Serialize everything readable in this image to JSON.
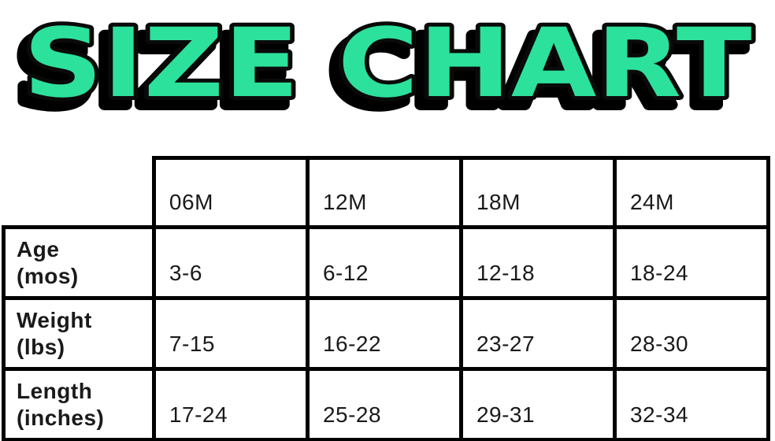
{
  "title": {
    "text": "SIZE CHART"
  },
  "colors": {
    "title_fill": "#2ce19c",
    "title_outline": "#000000",
    "table_border": "#000000",
    "text": "#1a1a1a",
    "background": "#ffffff"
  },
  "table": {
    "columns": [
      "06M",
      "12M",
      "18M",
      "24M"
    ],
    "rows": [
      {
        "label_line1": "Age",
        "label_line2": "(mos)",
        "values": [
          "3-6",
          "6-12",
          "12-18",
          "18-24"
        ]
      },
      {
        "label_line1": "Weight",
        "label_line2": "(lbs)",
        "values": [
          "7-15",
          "16-22",
          "23-27",
          "28-30"
        ]
      },
      {
        "label_line1": "Length",
        "label_line2": "(inches)",
        "values": [
          "17-24",
          "25-28",
          "29-31",
          "32-34"
        ]
      }
    ]
  },
  "chart_data": {
    "type": "table",
    "title": "SIZE CHART",
    "columns": [
      "",
      "06M",
      "12M",
      "18M",
      "24M"
    ],
    "rows": [
      [
        "Age (mos)",
        "3-6",
        "6-12",
        "12-18",
        "18-24"
      ],
      [
        "Weight (lbs)",
        "7-15",
        "16-22",
        "23-27",
        "28-30"
      ],
      [
        "Length (inches)",
        "17-24",
        "25-28",
        "29-31",
        "32-34"
      ]
    ]
  }
}
